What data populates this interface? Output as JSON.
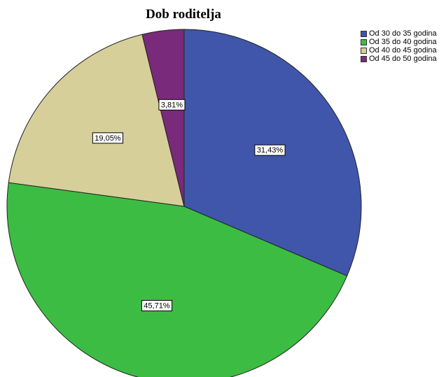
{
  "chart_data": {
    "type": "pie",
    "title": "Dob roditelja",
    "legend_position": "top-right",
    "slices": [
      {
        "label": "Od 30 do 35 godina",
        "value": 31.43,
        "value_label": "31,43%",
        "color": "#3f56aa"
      },
      {
        "label": "Od 35 do 40 godina",
        "value": 45.71,
        "value_label": "45,71%",
        "color": "#3cbc43"
      },
      {
        "label": "Od 40 do 45 godina",
        "value": 19.05,
        "value_label": "19,05%",
        "color": "#d6cf9a"
      },
      {
        "label": "Od 45 do 50 godina",
        "value": 3.81,
        "value_label": "3,81%",
        "color": "#7a2a7a"
      }
    ]
  }
}
